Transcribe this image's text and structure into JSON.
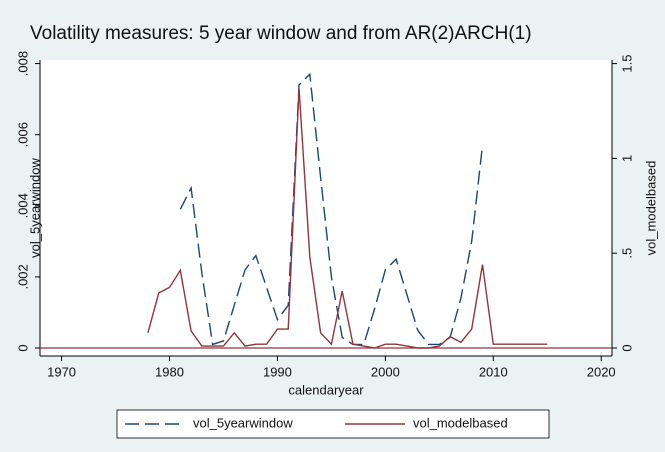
{
  "chart_data": {
    "type": "line",
    "title": "Volatility measures: 5 year window and from AR(2)ARCH(1)",
    "x_label": "calendaryear",
    "y_label": "vol_5yearwindow",
    "y2_label": "vol_modelbased",
    "x": [
      1978,
      1979,
      1980,
      1981,
      1982,
      1983,
      1984,
      1985,
      1986,
      1987,
      1988,
      1989,
      1990,
      1991,
      1992,
      1993,
      1994,
      1995,
      1996,
      1997,
      1998,
      1999,
      2000,
      2001,
      2002,
      2003,
      2004,
      2005,
      2006,
      2007,
      2008,
      2009,
      2010,
      2011,
      2012,
      2013,
      2014,
      2015
    ],
    "series": [
      {
        "name": "vol_5yearwindow",
        "color": "#1a476f",
        "dash": true,
        "values": [
          null,
          null,
          null,
          0.0039,
          0.0045,
          0.0021,
          0.0001,
          0.0002,
          0.0012,
          0.0022,
          0.0026,
          0.0017,
          0.0008,
          0.0012,
          0.0074,
          0.0077,
          0.0048,
          0.002,
          0.0003,
          0.0001,
          0.0001,
          0.0011,
          0.0022,
          0.0025,
          0.0015,
          0.0005,
          0.0001,
          0.0001,
          0.0003,
          0.0014,
          0.003,
          0.0057,
          null,
          null,
          null,
          null,
          null,
          null
        ]
      },
      {
        "name": "vol_modelbased",
        "color": "#90353b",
        "axis": "y2",
        "values": [
          0.08,
          0.29,
          0.32,
          0.41,
          0.09,
          0.01,
          0.01,
          0.01,
          0.08,
          0.01,
          0.02,
          0.02,
          0.1,
          0.1,
          1.37,
          0.48,
          0.08,
          0.02,
          0.3,
          0.02,
          0.01,
          0,
          0.02,
          0.02,
          0.01,
          0,
          0,
          0.01,
          0.06,
          0.03,
          0.1,
          0.44,
          0.02,
          0.02,
          0.02,
          0.02,
          0.02,
          0.02
        ]
      }
    ],
    "xlim": [
      1968,
      2021
    ],
    "xticks": [
      1970,
      1980,
      1990,
      2000,
      2010,
      2020
    ],
    "ylim": [
      0,
      0.0081
    ],
    "yticks": [
      0,
      {
        "value": 0.002,
        "label": ".002"
      },
      {
        "value": 0.004,
        "label": ".004"
      },
      {
        "value": 0.006,
        "label": ".006"
      },
      {
        "value": 0.008,
        "label": ".008"
      }
    ],
    "y2lim": [
      0,
      1.519
    ],
    "y2ticks": [
      0,
      {
        "value": 0.5,
        "label": ".5"
      },
      1,
      {
        "value": 1.5,
        "label": "1.5"
      }
    ],
    "legend": "bottom"
  }
}
